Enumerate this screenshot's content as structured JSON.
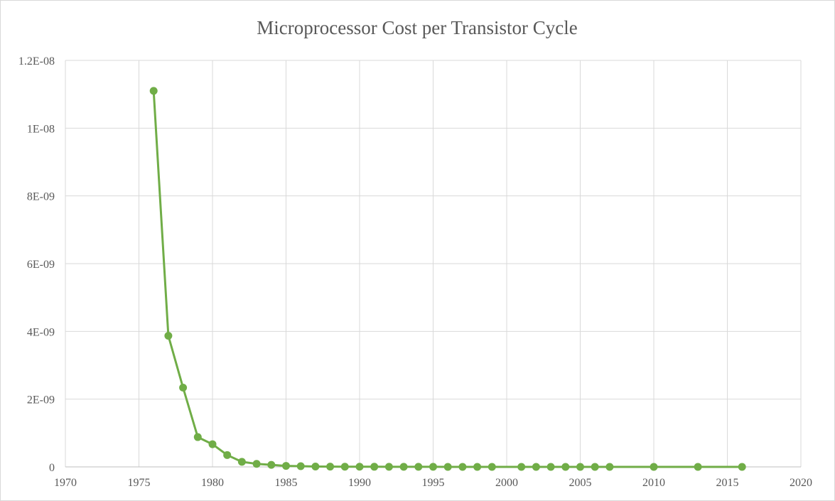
{
  "chart_data": {
    "type": "scatter",
    "title": "Microprocessor Cost per Transistor Cycle",
    "xlabel": "",
    "ylabel": "",
    "xlim": [
      1970,
      2020
    ],
    "ylim": [
      0,
      1.2e-08
    ],
    "x_ticks": [
      1970,
      1975,
      1980,
      1985,
      1990,
      1995,
      2000,
      2005,
      2010,
      2015,
      2020
    ],
    "x_tick_labels": [
      "1970",
      "1975",
      "1980",
      "1985",
      "1990",
      "1995",
      "2000",
      "2005",
      "2010",
      "2015",
      "2020"
    ],
    "y_ticks": [
      0,
      2e-09,
      4e-09,
      6e-09,
      8e-09,
      1e-08,
      1.2e-08
    ],
    "y_tick_labels": [
      "0",
      "2E-09",
      "4E-09",
      "6E-09",
      "8E-09",
      "1E-08",
      "1.2E-08"
    ],
    "grid": true,
    "legend": "none",
    "series": [
      {
        "color": "#70ad47",
        "markers": true,
        "lines": true,
        "x": [
          1976,
          1977,
          1978,
          1979,
          1980,
          1981,
          1982,
          1983,
          1984,
          1985,
          1986,
          1987,
          1988,
          1989,
          1990,
          1991,
          1992,
          1993,
          1994,
          1995,
          1996,
          1997,
          1998,
          1999,
          2001,
          2002,
          2003,
          2004,
          2005,
          2006,
          2007,
          2010,
          2013,
          2016
        ],
        "y": [
          1.11e-08,
          3.87e-09,
          2.34e-09,
          8.8e-10,
          6.7e-10,
          3.5e-10,
          1.5e-10,
          9e-11,
          6e-11,
          3e-11,
          2e-11,
          1e-11,
          8e-12,
          6e-12,
          5e-12,
          4e-12,
          3e-12,
          3e-12,
          2e-12,
          2e-12,
          1e-12,
          1e-12,
          1e-12,
          1e-12,
          5e-13,
          5e-13,
          4e-13,
          3e-13,
          3e-13,
          2e-13,
          2e-13,
          1e-13,
          5e-14,
          3e-14
        ]
      }
    ]
  }
}
